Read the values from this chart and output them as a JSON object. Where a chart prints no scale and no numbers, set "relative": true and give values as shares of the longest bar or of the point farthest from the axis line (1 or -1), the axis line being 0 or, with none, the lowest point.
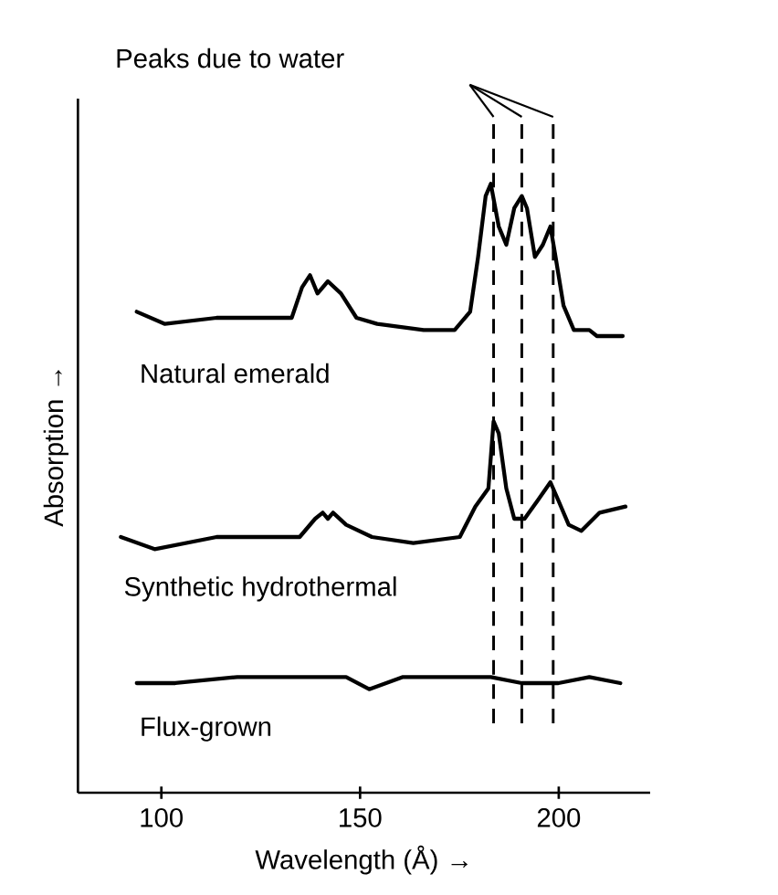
{
  "chart_data": {
    "type": "line",
    "relative": true,
    "xlabel": "Wavelength (Å) →",
    "ylabel": "Absorption →",
    "xlim": [
      79,
      223
    ],
    "xticks": [
      100,
      150,
      200
    ],
    "tick_labels": "x",
    "line_style": "solid",
    "annotations": [
      "Peaks due to water"
    ],
    "ref_lines": [
      {
        "axis": "x",
        "value": 183.6,
        "line_style": "dashed",
        "color": "#000000"
      },
      {
        "axis": "x",
        "value": 190.7,
        "line_style": "dashed",
        "color": "#000000"
      },
      {
        "axis": "x",
        "value": 198.6,
        "line_style": "dashed",
        "color": "#000000"
      }
    ],
    "series": [
      {
        "name": "Natural emerald",
        "color": "#000000",
        "x": [
          93.8,
          100.9,
          113.9,
          127,
          132.8,
          135.4,
          137.4,
          139.3,
          141.9,
          145.2,
          149.1,
          154.3,
          166,
          173.8,
          177.7,
          179.7,
          181.6,
          182.9,
          184.9,
          186.8,
          188.8,
          190.7,
          192,
          194,
          196,
          197.9,
          199.2,
          201.2,
          203.8,
          207.7,
          209.6,
          211.6,
          216.1
        ],
        "values": [
          0.79,
          0.77,
          0.78,
          0.78,
          0.78,
          0.83,
          0.85,
          0.82,
          0.84,
          0.82,
          0.78,
          0.77,
          0.76,
          0.76,
          0.79,
          0.88,
          0.98,
          1.0,
          0.93,
          0.9,
          0.96,
          0.98,
          0.96,
          0.88,
          0.9,
          0.93,
          0.88,
          0.8,
          0.76,
          0.76,
          0.75,
          0.75,
          0.75
        ]
      },
      {
        "name": "Synthetic hydrothermal",
        "color": "#000000",
        "x": [
          89.8,
          98.3,
          113.9,
          134.8,
          138.7,
          140.6,
          141.9,
          143.2,
          146.5,
          153,
          163.4,
          175.1,
          179,
          182.3,
          183.6,
          184.9,
          186.8,
          188.8,
          191.4,
          194.7,
          197.9,
          199.9,
          202.5,
          205.7,
          210.3,
          216.8
        ],
        "values": [
          0.42,
          0.4,
          0.42,
          0.42,
          0.45,
          0.46,
          0.45,
          0.46,
          0.44,
          0.42,
          0.41,
          0.42,
          0.47,
          0.5,
          0.61,
          0.59,
          0.5,
          0.45,
          0.45,
          0.48,
          0.51,
          0.48,
          0.44,
          0.43,
          0.46,
          0.47
        ]
      },
      {
        "name": "Flux-grown",
        "color": "#000000",
        "x": [
          93.8,
          103.5,
          119.1,
          134.8,
          146.5,
          152.3,
          160.8,
          173.8,
          182.9,
          190.7,
          199.9,
          207.7,
          215.5
        ],
        "values": [
          0.18,
          0.18,
          0.19,
          0.19,
          0.19,
          0.17,
          0.19,
          0.19,
          0.19,
          0.18,
          0.18,
          0.19,
          0.18
        ]
      }
    ]
  }
}
